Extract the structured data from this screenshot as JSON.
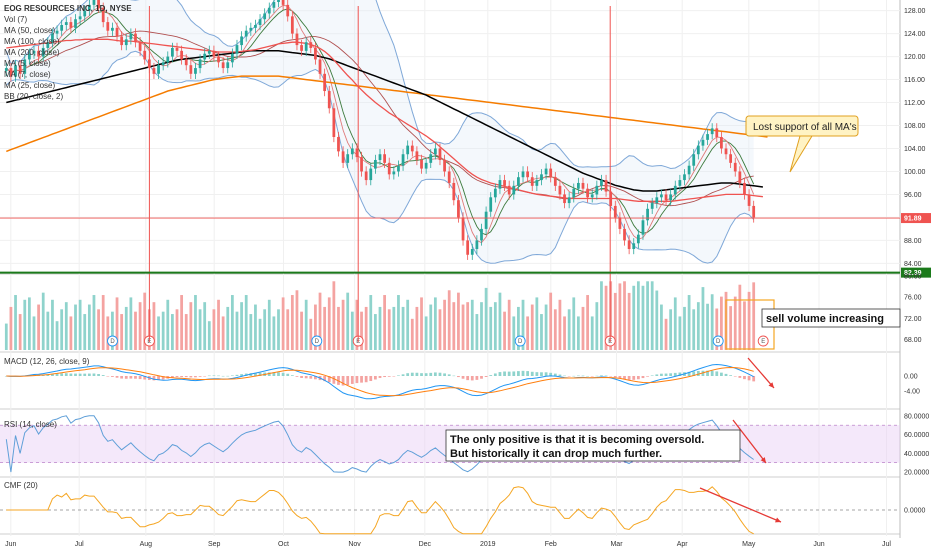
{
  "colors": {
    "up": "#26a69a",
    "down": "#ef5350",
    "ma50": "#ef5350",
    "ma100": "#000000",
    "ma200": "#f57c00",
    "bb": "#7fa8d8",
    "macd": "#2196f3",
    "signal": "#ff7f0e",
    "cmf": "#f5a623",
    "rsi_band": "#e6ccf5",
    "support": "#1b7a1b",
    "last_price": "#ef5350",
    "arrow": "#e53935"
  },
  "chart_data": {
    "type": "candlestick",
    "title": "EOG RESOURCES INC, 1D, NYSE",
    "x_labels": [
      "Jun",
      "Jul",
      "Aug",
      "Sep",
      "Oct",
      "Nov",
      "Dec",
      "2019",
      "Feb",
      "Mar",
      "Apr",
      "May",
      "Jun",
      "Jul"
    ],
    "x_label_frac": [
      0.012,
      0.088,
      0.162,
      0.238,
      0.315,
      0.394,
      0.472,
      0.542,
      0.612,
      0.685,
      0.758,
      0.832,
      0.91,
      0.985
    ],
    "price": {
      "ylim": [
        82.5,
        129.5
      ],
      "ticks": [
        84,
        88,
        92,
        96,
        100,
        104,
        108,
        112,
        116,
        120,
        124,
        128
      ],
      "tick_labels": [
        "84.00",
        "88.00",
        "92.00",
        "96.00",
        "100.00",
        "104.00",
        "108.00",
        "112.00",
        "116.00",
        "120.00",
        "124.00",
        "128.00"
      ],
      "last_price": "91.89",
      "support": "82.39",
      "closes": [
        118.0,
        116.5,
        118.5,
        117.0,
        119.5,
        120.5,
        121.0,
        120.0,
        121.5,
        122.5,
        124.0,
        124.5,
        125.5,
        126.0,
        125.0,
        126.5,
        127.0,
        128.0,
        129.0,
        130.0,
        128.5,
        126.0,
        124.5,
        125.0,
        123.5,
        122.0,
        123.0,
        124.0,
        122.5,
        121.0,
        119.5,
        118.0,
        117.0,
        118.5,
        119.0,
        120.0,
        121.5,
        121.0,
        119.5,
        118.5,
        117.0,
        118.0,
        119.5,
        120.5,
        121.0,
        120.0,
        119.0,
        118.0,
        119.0,
        120.5,
        122.0,
        123.5,
        124.5,
        125.0,
        125.5,
        126.5,
        127.5,
        128.5,
        129.5,
        130.0,
        129.0,
        127.0,
        124.0,
        122.0,
        121.0,
        122.5,
        121.5,
        119.5,
        117.0,
        114.0,
        111.0,
        106.0,
        103.5,
        101.5,
        103.0,
        104.0,
        102.5,
        100.0,
        98.5,
        100.5,
        102.0,
        103.0,
        101.5,
        99.5,
        100.0,
        101.0,
        103.0,
        104.5,
        103.5,
        102.0,
        100.5,
        101.5,
        103.0,
        104.0,
        102.0,
        100.0,
        98.0,
        95.0,
        92.0,
        88.0,
        85.5,
        86.5,
        88.0,
        90.0,
        93.0,
        95.5,
        97.0,
        98.5,
        97.5,
        96.0,
        97.5,
        99.0,
        100.0,
        99.0,
        97.5,
        98.5,
        99.5,
        100.5,
        99.0,
        97.5,
        96.0,
        94.5,
        95.5,
        97.0,
        98.0,
        97.0,
        95.5,
        96.0,
        97.5,
        98.5,
        96.5,
        94.0,
        92.0,
        90.0,
        88.0,
        86.5,
        87.5,
        89.0,
        91.5,
        93.5,
        94.5,
        95.5,
        96.0,
        95.0,
        96.0,
        97.5,
        98.5,
        99.5,
        101.0,
        103.0,
        104.5,
        105.5,
        106.5,
        107.5,
        106.0,
        104.0,
        103.0,
        101.5,
        100.0,
        98.0,
        96.0,
        94.0,
        92.0
      ],
      "ma50": [
        121.5,
        121.6,
        121.7,
        121.8,
        121.9,
        122.0,
        122.1,
        122.2,
        122.3,
        122.4,
        122.5,
        122.6,
        122.7,
        122.8,
        122.8,
        122.9,
        122.9,
        123.0,
        123.0,
        123.0,
        123.0,
        123.0,
        123.0,
        122.9,
        122.8,
        122.7,
        122.7,
        122.7,
        122.6,
        122.5,
        122.4,
        122.3,
        122.2,
        122.1,
        122.0,
        121.9,
        121.8,
        121.7,
        121.6,
        121.5,
        121.4,
        121.3,
        121.2,
        121.1,
        121.0,
        120.9,
        120.8,
        120.8,
        120.8,
        120.8,
        120.8,
        120.9,
        121.0,
        121.1,
        121.2,
        121.4,
        121.6,
        121.8,
        122.0,
        122.2,
        122.3,
        122.4,
        122.5,
        122.5,
        122.4,
        122.3,
        122.1,
        121.8,
        121.4,
        120.9,
        120.2,
        119.4,
        118.5,
        117.6,
        116.7,
        115.9,
        115.0,
        114.2,
        113.4,
        112.7,
        112.0,
        111.4,
        110.8,
        110.2,
        109.7,
        109.2,
        108.7,
        108.2,
        107.7,
        107.2,
        106.7,
        106.2,
        105.6,
        105.0,
        104.3,
        103.6,
        102.9,
        102.2,
        101.5,
        100.8,
        100.1,
        99.5,
        99.0,
        98.6,
        98.3,
        98.0,
        97.8,
        97.6,
        97.4,
        97.2,
        97.0,
        96.8,
        96.6,
        96.4,
        96.2,
        96.0,
        95.9,
        95.8,
        95.7,
        95.6,
        95.5,
        95.4,
        95.3,
        95.3,
        95.3,
        95.3,
        95.3,
        95.3,
        95.3,
        95.3,
        95.3,
        95.3,
        95.3,
        95.2,
        95.1,
        95.0,
        94.9,
        94.8,
        94.8,
        94.8,
        94.8,
        94.8,
        94.8,
        94.8,
        94.8,
        94.9,
        95.0,
        95.1,
        95.2,
        95.3,
        95.4,
        95.5,
        95.6,
        95.7,
        95.8,
        95.9,
        96.0,
        96.0,
        96.0,
        96.0,
        96.0,
        95.9,
        95.8,
        95.7,
        95.6
      ],
      "ma100": [
        112.0,
        112.2,
        112.4,
        112.6,
        112.8,
        113.0,
        113.2,
        113.4,
        113.6,
        113.8,
        114.0,
        114.2,
        114.4,
        114.6,
        114.8,
        115.0,
        115.2,
        115.4,
        115.6,
        115.8,
        116.0,
        116.2,
        116.4,
        116.6,
        116.8,
        117.0,
        117.2,
        117.4,
        117.6,
        117.8,
        118.0,
        118.2,
        118.4,
        118.6,
        118.8,
        119.0,
        119.2,
        119.4,
        119.5,
        119.6,
        119.7,
        119.8,
        119.9,
        120.0,
        120.1,
        120.2,
        120.3,
        120.4,
        120.5,
        120.6,
        120.7,
        120.8,
        120.9,
        121.0,
        121.0,
        121.0,
        121.0,
        121.0,
        121.0,
        121.0,
        120.9,
        120.8,
        120.7,
        120.6,
        120.5,
        120.4,
        120.3,
        120.2,
        120.0,
        119.8,
        119.6,
        119.3,
        119.0,
        118.7,
        118.4,
        118.1,
        117.8,
        117.5,
        117.2,
        116.9,
        116.6,
        116.3,
        116.0,
        115.7,
        115.4,
        115.1,
        114.8,
        114.5,
        114.2,
        113.9,
        113.6,
        113.3,
        112.9,
        112.5,
        112.1,
        111.7,
        111.3,
        110.9,
        110.5,
        110.1,
        109.7,
        109.3,
        108.9,
        108.5,
        108.1,
        107.7,
        107.3,
        106.9,
        106.5,
        106.1,
        105.7,
        105.3,
        104.9,
        104.5,
        104.1,
        103.7,
        103.3,
        102.9,
        102.5,
        102.1,
        101.7,
        101.3,
        100.9,
        100.5,
        100.1,
        99.7,
        99.4,
        99.1,
        98.8,
        98.5,
        98.2,
        97.9,
        97.6,
        97.4,
        97.2,
        97.0,
        96.8,
        96.7,
        96.6,
        96.6,
        96.6,
        96.6,
        96.7,
        96.8,
        96.9,
        97.0,
        97.1,
        97.2,
        97.3,
        97.4,
        97.5,
        97.6,
        97.7,
        97.8,
        97.9,
        98.0,
        98.0,
        98.0,
        97.9,
        97.8,
        97.7,
        97.6,
        97.5,
        97.4,
        97.3
      ],
      "ma200": [
        103.5,
        103.8,
        104.1,
        104.4,
        104.7,
        105.0,
        105.3,
        105.6,
        105.9,
        106.2,
        106.5,
        106.8,
        107.1,
        107.4,
        107.7,
        108.0,
        108.3,
        108.6,
        108.9,
        109.2,
        109.5,
        109.8,
        110.1,
        110.4,
        110.7,
        111.0,
        111.3,
        111.6,
        111.9,
        112.2,
        112.5,
        112.8,
        113.1,
        113.4,
        113.7,
        114.0,
        114.2,
        114.4,
        114.6,
        114.8,
        115.0,
        115.2,
        115.4,
        115.6,
        115.8,
        116.0,
        116.1,
        116.2,
        116.3,
        116.4,
        116.5,
        116.6,
        116.6,
        116.6,
        116.6,
        116.6,
        116.6,
        116.6,
        116.6,
        116.6,
        116.5,
        116.4,
        116.3,
        116.2,
        116.1,
        116.0,
        115.9,
        115.8,
        115.7,
        115.6,
        115.5,
        115.4,
        115.3,
        115.2,
        115.1,
        115.0,
        114.9,
        114.8,
        114.7,
        114.6,
        114.5,
        114.4,
        114.3,
        114.2,
        114.1,
        114.0,
        113.9,
        113.8,
        113.7,
        113.6,
        113.5,
        113.4,
        113.3,
        113.2,
        113.1,
        113.0,
        112.9,
        112.8,
        112.7,
        112.6,
        112.5,
        112.4,
        112.3,
        112.2,
        112.1,
        112.0,
        111.9,
        111.8,
        111.7,
        111.6,
        111.5,
        111.4,
        111.3,
        111.2,
        111.1,
        111.0,
        110.9,
        110.8,
        110.7,
        110.6,
        110.5,
        110.4,
        110.3,
        110.2,
        110.1,
        110.0,
        109.9,
        109.8,
        109.7,
        109.6,
        109.5,
        109.4,
        109.3,
        109.2,
        109.1,
        109.0,
        108.9,
        108.8,
        108.7,
        108.6,
        108.5,
        108.4,
        108.3,
        108.2,
        108.1,
        108.0,
        107.9,
        107.8,
        107.7,
        107.6,
        107.5,
        107.4,
        107.3,
        107.2,
        107.1,
        107.0,
        106.9,
        106.8,
        106.7,
        106.6,
        106.5,
        106.4,
        106.3,
        106.2,
        106.1,
        106.0
      ]
    },
    "volume": {
      "ticks": [
        68,
        72,
        76,
        80
      ],
      "tick_labels": [
        "68.00",
        "72.00",
        "76.00",
        "80.00"
      ],
      "events": [
        {
          "label": "D",
          "at": 0.125
        },
        {
          "label": "E",
          "at": 0.166
        },
        {
          "label": "D",
          "at": 0.352
        },
        {
          "label": "E",
          "at": 0.398
        },
        {
          "label": "D",
          "at": 0.578
        },
        {
          "label": "E",
          "at": 0.678
        },
        {
          "label": "D",
          "at": 0.798
        },
        {
          "label": "E",
          "at": 0.848
        }
      ]
    },
    "macd": {
      "name": "MACD (12, 26, close, 9)",
      "ticks": [
        0,
        -4
      ],
      "tick_labels": [
        "0.00",
        "-4.00"
      ]
    },
    "rsi": {
      "name": "RSI (14, close)",
      "ticks": [
        80,
        60,
        40,
        20
      ],
      "tick_labels": [
        "80.0000",
        "60.0000",
        "40.0000",
        "20.0000"
      ],
      "band": [
        30,
        70
      ]
    },
    "cmf": {
      "name": "CMF (20)",
      "ticks": [
        0
      ],
      "tick_labels": [
        "0.0000"
      ]
    },
    "legend": [
      "Vol (7)",
      "MA (50, close)",
      "MA (100, close)",
      "MA (200, close)",
      "MA (5, close)",
      "MA (7, close)",
      "MA (25, close)",
      "BB (20, close, 2)"
    ]
  },
  "annotations": {
    "lost_support": "Lost support of all MA's",
    "sell_volume": "sell volume increasing",
    "oversold_line1": "The only positive is that it is becoming oversold.",
    "oversold_line2": "But historically it can drop much further."
  }
}
